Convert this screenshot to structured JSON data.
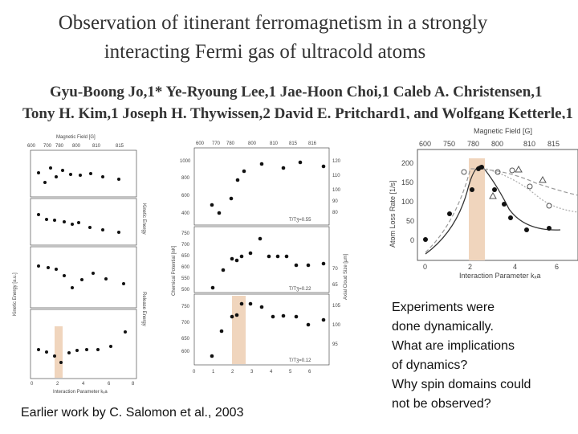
{
  "title": {
    "line1": "Observation of itinerant ferromagnetism in a strongly",
    "line2": "interacting Fermi gas of ultracold atoms"
  },
  "authors": {
    "line1": "Gyu-Boong Jo,1* Ye-Ryoung Lee,1 Jae-Hoon Choi,1 Caleb A. Christensen,1",
    "line2": "Tony H. Kim,1 Joseph H. Thywissen,2 David E. Pritchard1, and Wolfgang Ketterle,1"
  },
  "left_figure": {
    "top_label": "Magnetic Field [G]",
    "top_ticks": [
      "600",
      "700",
      "780",
      "800",
      "810",
      "815"
    ],
    "bottom_label": "Interaction Parameter kₓa",
    "bottom_ticks": [
      "0",
      "2",
      "4",
      "6",
      "8"
    ],
    "left_label": "Kinetic Energy [a.u.]",
    "right_labels": [
      "Kinetic Energy",
      "Release Energy"
    ]
  },
  "middle_figure": {
    "top_ticks": [
      "600",
      "770",
      "780",
      "800",
      "810",
      "815",
      "816"
    ],
    "y_label": "Chemical Potential [nK]",
    "right_label": "Axial Cloud Size [µm]",
    "panel_labels": [
      "T/Tʒ=0.55",
      "T/Tʒ=0.22",
      "T/Tʒ=0.12"
    ],
    "left_ticks": {
      "top": [
        "1000",
        "800",
        "600",
        "400"
      ],
      "middle": [
        "750",
        "700",
        "650",
        "600",
        "550",
        "500"
      ],
      "bottom": [
        "750",
        "700",
        "650",
        "600"
      ]
    },
    "right_ticks": {
      "top": [
        "120",
        "110",
        "100",
        "90",
        "80"
      ],
      "middle": [
        "70",
        "65"
      ],
      "bottom": [
        "105",
        "100",
        "95"
      ]
    },
    "bottom_ticks": [
      "0",
      "1",
      "2",
      "3",
      "4",
      "5",
      "6"
    ]
  },
  "right_figure": {
    "top_label": "Magnetic Field [G]",
    "top_ticks": [
      "600",
      "750",
      "780",
      "800",
      "810",
      "815"
    ],
    "y_label": "Atom Loss Rate [1/s]",
    "y_ticks": [
      "200",
      "150",
      "100",
      "50",
      "0"
    ],
    "x_label": "Interaction Parameter kₓa",
    "x_ticks": [
      "0",
      "2",
      "4",
      "6"
    ]
  },
  "credit": "Earlier work by C. Salomon et al., 2003",
  "questions": [
    "Experiments were",
    "done dynamically.",
    "What are implications",
    "of dynamics?",
    "Why spin domains could",
    "not be observed?"
  ],
  "colors": {
    "highlight": "#f0d5bd",
    "text": "#1a1a1a",
    "curve_gray": "#999999"
  }
}
